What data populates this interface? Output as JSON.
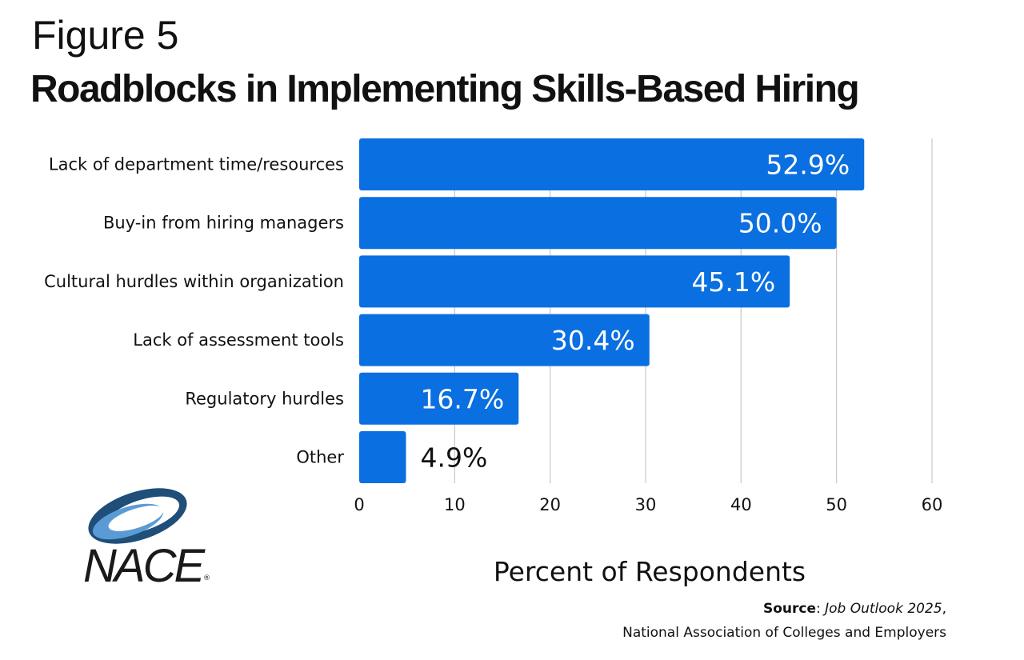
{
  "figure_label": "Figure 5",
  "title": "Roadblocks in Implementing Skills-Based Hiring",
  "source": {
    "label": "Source",
    "publication": "Job Outlook 2025",
    "organization": "National Association of Colleges and Employers"
  },
  "logo": {
    "text": "NACE",
    "mark": "®"
  },
  "colors": {
    "bar": "#0a6fe0",
    "label_inside": "#ffffff",
    "label_outside": "#111111",
    "grid": "#cccccc"
  },
  "chart_data": {
    "type": "bar",
    "orientation": "horizontal",
    "categories": [
      "Lack of department time/resources",
      "Buy-in from hiring managers",
      "Cultural hurdles within organization",
      "Lack of assessment tools",
      "Regulatory hurdles",
      "Other"
    ],
    "values": [
      52.9,
      50.0,
      45.1,
      30.4,
      16.7,
      4.9
    ],
    "data_labels": [
      "52.9%",
      "50.0%",
      "45.1%",
      "30.4%",
      "16.7%",
      "4.9%"
    ],
    "xlabel": "Percent of Respondents",
    "ylabel": "",
    "xlim": [
      0,
      60
    ],
    "xticks": [
      0,
      10,
      20,
      30,
      40,
      50,
      60
    ],
    "grid": "vertical"
  }
}
